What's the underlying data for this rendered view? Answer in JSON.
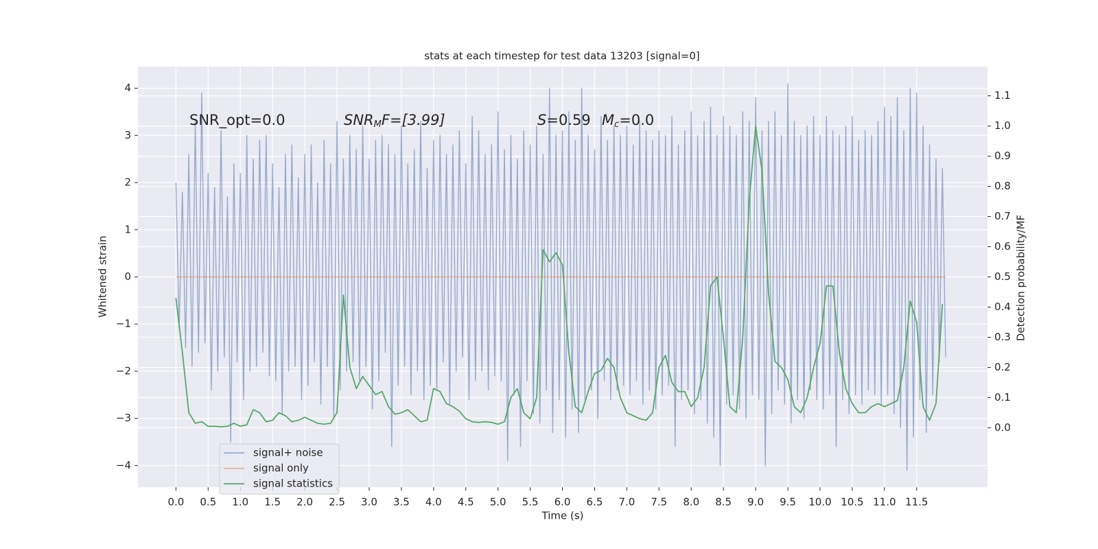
{
  "chart_data": {
    "type": "line",
    "title": "stats at each timestep for test data 13203 [signal=0]",
    "xlabel": "Time (s)",
    "ylabel": "Whitened strain",
    "y2label": "Detection probability/MF",
    "annotations": [
      "SNR_opt=0.0",
      "SNR",
      "M",
      "F=[3.99]",
      "S",
      "=0.59",
      "M",
      "c",
      "=0.0"
    ],
    "xlim": [
      -0.59,
      12.6
    ],
    "xticks": [
      {
        "value": 0,
        "label": "0.0"
      },
      0.5,
      {
        "value": 1,
        "label": "1.0"
      },
      1.5,
      {
        "value": 2,
        "label": "2.0"
      },
      2.5,
      {
        "value": 3,
        "label": "3.0"
      },
      3.5,
      {
        "value": 4,
        "label": "4.0"
      },
      4.5,
      {
        "value": 5,
        "label": "5.0"
      },
      5.5,
      {
        "value": 6,
        "label": "6.0"
      },
      6.5,
      {
        "value": 7,
        "label": "7.0"
      },
      7.5,
      {
        "value": 8,
        "label": "8.0"
      },
      8.5,
      {
        "value": 9,
        "label": "9.0"
      },
      9.5,
      {
        "value": 10,
        "label": "10.0"
      },
      10.5,
      {
        "value": 11,
        "label": "11.0"
      },
      11.5
    ],
    "ylim": [
      -4.46,
      4.46
    ],
    "yticks": [
      {
        "value": -4,
        "label": "−4"
      },
      {
        "value": -3,
        "label": "−3"
      },
      {
        "value": -2,
        "label": "−2"
      },
      {
        "value": -1,
        "label": "−1"
      },
      0,
      1,
      2,
      3,
      4
    ],
    "y2lim": [
      -0.197,
      1.197
    ],
    "y2ticks": [
      {
        "value": 0,
        "label": "0.0"
      },
      0.1,
      0.2,
      0.3,
      0.4,
      0.5,
      0.6,
      0.7,
      0.8,
      0.9,
      {
        "value": 1,
        "label": "1.0"
      },
      1.1
    ],
    "grid": true,
    "legend": "lower left",
    "series": [
      {
        "name": "signal+ noise",
        "color": "#4c72b0",
        "x": [
          0,
          0.05,
          0.1,
          0.15,
          0.2,
          0.25,
          0.3,
          0.35,
          0.4,
          0.45,
          0.5,
          0.55,
          0.6,
          0.65,
          0.7,
          0.75,
          0.8,
          0.85,
          0.9,
          0.95,
          1,
          1.05,
          1.1,
          1.15,
          1.2,
          1.25,
          1.3,
          1.35,
          1.4,
          1.45,
          1.5,
          1.55,
          1.6,
          1.65,
          1.7,
          1.75,
          1.8,
          1.85,
          1.9,
          1.95,
          2,
          2.05,
          2.1,
          2.15,
          2.2,
          2.25,
          2.3,
          2.35,
          2.4,
          2.45,
          2.5,
          2.55,
          2.6,
          2.65,
          2.7,
          2.75,
          2.8,
          2.85,
          2.9,
          2.95,
          3,
          3.05,
          3.1,
          3.15,
          3.2,
          3.25,
          3.3,
          3.35,
          3.4,
          3.45,
          3.5,
          3.55,
          3.6,
          3.65,
          3.7,
          3.75,
          3.8,
          3.85,
          3.9,
          3.95,
          4,
          4.05,
          4.1,
          4.15,
          4.2,
          4.25,
          4.3,
          4.35,
          4.4,
          4.45,
          4.5,
          4.55,
          4.6,
          4.65,
          4.7,
          4.75,
          4.8,
          4.85,
          4.9,
          4.95,
          5,
          5.05,
          5.1,
          5.15,
          5.2,
          5.25,
          5.3,
          5.35,
          5.4,
          5.45,
          5.5,
          5.55,
          5.6,
          5.65,
          5.7,
          5.75,
          5.8,
          5.85,
          5.9,
          5.95,
          6,
          6.05,
          6.1,
          6.15,
          6.2,
          6.25,
          6.3,
          6.35,
          6.4,
          6.45,
          6.5,
          6.55,
          6.6,
          6.65,
          6.7,
          6.75,
          6.8,
          6.85,
          6.9,
          6.95,
          7,
          7.05,
          7.1,
          7.15,
          7.2,
          7.25,
          7.3,
          7.35,
          7.4,
          7.45,
          7.5,
          7.55,
          7.6,
          7.65,
          7.7,
          7.75,
          7.8,
          7.85,
          7.9,
          7.95,
          8,
          8.05,
          8.1,
          8.15,
          8.2,
          8.25,
          8.3,
          8.35,
          8.4,
          8.45,
          8.5,
          8.55,
          8.6,
          8.65,
          8.7,
          8.75,
          8.8,
          8.85,
          8.9,
          8.95,
          9,
          9.05,
          9.1,
          9.15,
          9.2,
          9.25,
          9.3,
          9.35,
          9.4,
          9.45,
          9.5,
          9.55,
          9.6,
          9.65,
          9.7,
          9.75,
          9.8,
          9.85,
          9.9,
          9.95,
          10,
          10.05,
          10.1,
          10.15,
          10.2,
          10.25,
          10.3,
          10.35,
          10.4,
          10.45,
          10.5,
          10.55,
          10.6,
          10.65,
          10.7,
          10.75,
          10.8,
          10.85,
          10.9,
          10.95,
          11,
          11.05,
          11.1,
          11.15,
          11.2,
          11.25,
          11.3,
          11.35,
          11.4,
          11.45,
          11.5,
          11.55,
          11.6,
          11.65,
          11.7,
          11.75,
          11.8,
          11.85,
          11.9,
          11.95
        ],
        "values": [
          2.0,
          -1.1,
          1.8,
          -1.5,
          2.6,
          -1.9,
          3.3,
          -1.6,
          3.9,
          -1.4,
          2.2,
          -2.4,
          1.9,
          -2.0,
          3.1,
          -1.7,
          1.7,
          -3.5,
          2.4,
          -1.8,
          2.2,
          -2.6,
          3.0,
          -2.0,
          2.5,
          -1.9,
          2.9,
          -1.6,
          3.0,
          -2.1,
          2.4,
          -2.2,
          1.9,
          -2.9,
          2.6,
          -2.0,
          2.8,
          -1.9,
          2.1,
          -2.6,
          2.6,
          -2.3,
          2.8,
          -1.8,
          2.0,
          -2.7,
          2.9,
          -1.9,
          2.4,
          -3.0,
          3.3,
          -2.4,
          2.5,
          -2.0,
          3.0,
          -1.8,
          2.7,
          -2.2,
          3.2,
          -1.9,
          2.5,
          -2.8,
          2.9,
          -2.2,
          3.0,
          -1.6,
          2.8,
          -3.6,
          2.6,
          -2.3,
          3.2,
          -1.9,
          2.4,
          -2.5,
          2.7,
          -2.0,
          3.3,
          -2.6,
          2.3,
          -2.3,
          2.9,
          -2.4,
          3.0,
          -1.8,
          2.6,
          -2.7,
          2.8,
          -2.0,
          3.1,
          -1.7,
          2.4,
          -2.6,
          3.4,
          -2.2,
          3.1,
          -2.0,
          2.6,
          -2.4,
          2.8,
          -2.1,
          3.5,
          -2.2,
          2.7,
          -3.9,
          3.0,
          -2.5,
          2.5,
          -3.6,
          3.1,
          -2.2,
          2.8,
          -2.9,
          3.2,
          -3.1,
          2.6,
          -2.4,
          4.0,
          -3.3,
          3.0,
          -2.6,
          3.1,
          -3.4,
          3.5,
          -2.8,
          2.9,
          -3.3,
          4.0,
          -2.6,
          3.0,
          -2.4,
          2.7,
          -3.0,
          3.4,
          -2.2,
          2.9,
          -2.6,
          3.2,
          -2.4,
          3.0,
          -2.3,
          3.2,
          -2.5,
          2.8,
          -2.2,
          3.3,
          -2.7,
          3.1,
          -2.4,
          2.9,
          -2.8,
          3.1,
          -2.5,
          3.0,
          -2.3,
          3.4,
          -3.6,
          2.8,
          -2.6,
          3.1,
          -2.4,
          3.5,
          -2.9,
          3.0,
          -2.6,
          3.3,
          -3.1,
          3.6,
          -3.4,
          3.0,
          -4.0,
          3.4,
          -2.7,
          3.2,
          -2.5,
          3.0,
          -2.8,
          3.5,
          -3.0,
          3.3,
          -2.5,
          3.8,
          -2.6,
          3.1,
          -4.0,
          3.3,
          -2.9,
          3.5,
          -2.4,
          3.0,
          -2.7,
          4.1,
          -3.1,
          3.3,
          -2.6,
          3.0,
          -3.0,
          3.2,
          -2.4,
          3.4,
          -2.6,
          3.0,
          -2.8,
          3.4,
          -2.5,
          3.1,
          -3.6,
          3.0,
          -2.6,
          3.2,
          -2.9,
          3.4,
          -2.5,
          2.9,
          -2.7,
          3.1,
          -2.4,
          3.0,
          -2.5,
          3.3,
          -2.7,
          3.6,
          -2.5,
          3.4,
          -2.9,
          3.8,
          -3.2,
          3.1,
          -4.1,
          4.0,
          -3.4,
          3.9,
          -2.6,
          3.2,
          -3.3,
          2.8,
          -2.5,
          2.5,
          -1.8,
          2.3,
          -1.7
        ]
      },
      {
        "name": "signal only",
        "color": "#dd8452",
        "x": [
          0,
          11.95
        ],
        "values": [
          0,
          0
        ]
      },
      {
        "name": "signal statistics",
        "color": "#55a868",
        "axis": "y2",
        "x": [
          0,
          0.1,
          0.2,
          0.3,
          0.4,
          0.5,
          0.6,
          0.7,
          0.8,
          0.9,
          1,
          1.1,
          1.2,
          1.3,
          1.4,
          1.5,
          1.6,
          1.7,
          1.8,
          1.9,
          2,
          2.1,
          2.2,
          2.3,
          2.4,
          2.5,
          2.6,
          2.7,
          2.8,
          2.9,
          3,
          3.1,
          3.2,
          3.3,
          3.4,
          3.5,
          3.6,
          3.7,
          3.8,
          3.9,
          4,
          4.1,
          4.2,
          4.3,
          4.4,
          4.5,
          4.6,
          4.7,
          4.8,
          4.9,
          5,
          5.1,
          5.2,
          5.3,
          5.4,
          5.5,
          5.6,
          5.7,
          5.8,
          5.9,
          6,
          6.1,
          6.2,
          6.3,
          6.4,
          6.5,
          6.6,
          6.7,
          6.8,
          6.9,
          7,
          7.1,
          7.2,
          7.3,
          7.4,
          7.5,
          7.6,
          7.7,
          7.8,
          7.9,
          8,
          8.1,
          8.2,
          8.3,
          8.4,
          8.5,
          8.6,
          8.7,
          8.8,
          8.9,
          9,
          9.1,
          9.2,
          9.3,
          9.4,
          9.5,
          9.6,
          9.7,
          9.8,
          9.9,
          10,
          10.1,
          10.2,
          10.3,
          10.4,
          10.5,
          10.6,
          10.7,
          10.8,
          10.9,
          11,
          11.1,
          11.2,
          11.3,
          11.4,
          11.5,
          11.6,
          11.7,
          11.8,
          11.9
        ],
        "values": [
          0.43,
          0.25,
          0.05,
          0.015,
          0.02,
          0.005,
          0.005,
          0.003,
          0.005,
          0.015,
          0.005,
          0.01,
          0.06,
          0.05,
          0.02,
          0.025,
          0.05,
          0.04,
          0.02,
          0.025,
          0.035,
          0.025,
          0.015,
          0.012,
          0.015,
          0.05,
          0.44,
          0.2,
          0.13,
          0.17,
          0.14,
          0.11,
          0.12,
          0.07,
          0.045,
          0.05,
          0.06,
          0.04,
          0.02,
          0.025,
          0.13,
          0.12,
          0.08,
          0.07,
          0.055,
          0.03,
          0.02,
          0.018,
          0.02,
          0.018,
          0.012,
          0.02,
          0.1,
          0.13,
          0.05,
          0.03,
          0.1,
          0.59,
          0.55,
          0.58,
          0.54,
          0.25,
          0.07,
          0.05,
          0.12,
          0.18,
          0.19,
          0.23,
          0.2,
          0.1,
          0.05,
          0.04,
          0.03,
          0.025,
          0.05,
          0.2,
          0.24,
          0.15,
          0.12,
          0.12,
          0.07,
          0.1,
          0.2,
          0.47,
          0.5,
          0.3,
          0.07,
          0.05,
          0.3,
          0.75,
          1.0,
          0.85,
          0.45,
          0.22,
          0.2,
          0.16,
          0.07,
          0.05,
          0.1,
          0.2,
          0.28,
          0.47,
          0.47,
          0.25,
          0.13,
          0.08,
          0.05,
          0.05,
          0.07,
          0.08,
          0.07,
          0.08,
          0.09,
          0.2,
          0.42,
          0.35,
          0.07,
          0.025,
          0.08,
          0.41
        ]
      }
    ]
  }
}
